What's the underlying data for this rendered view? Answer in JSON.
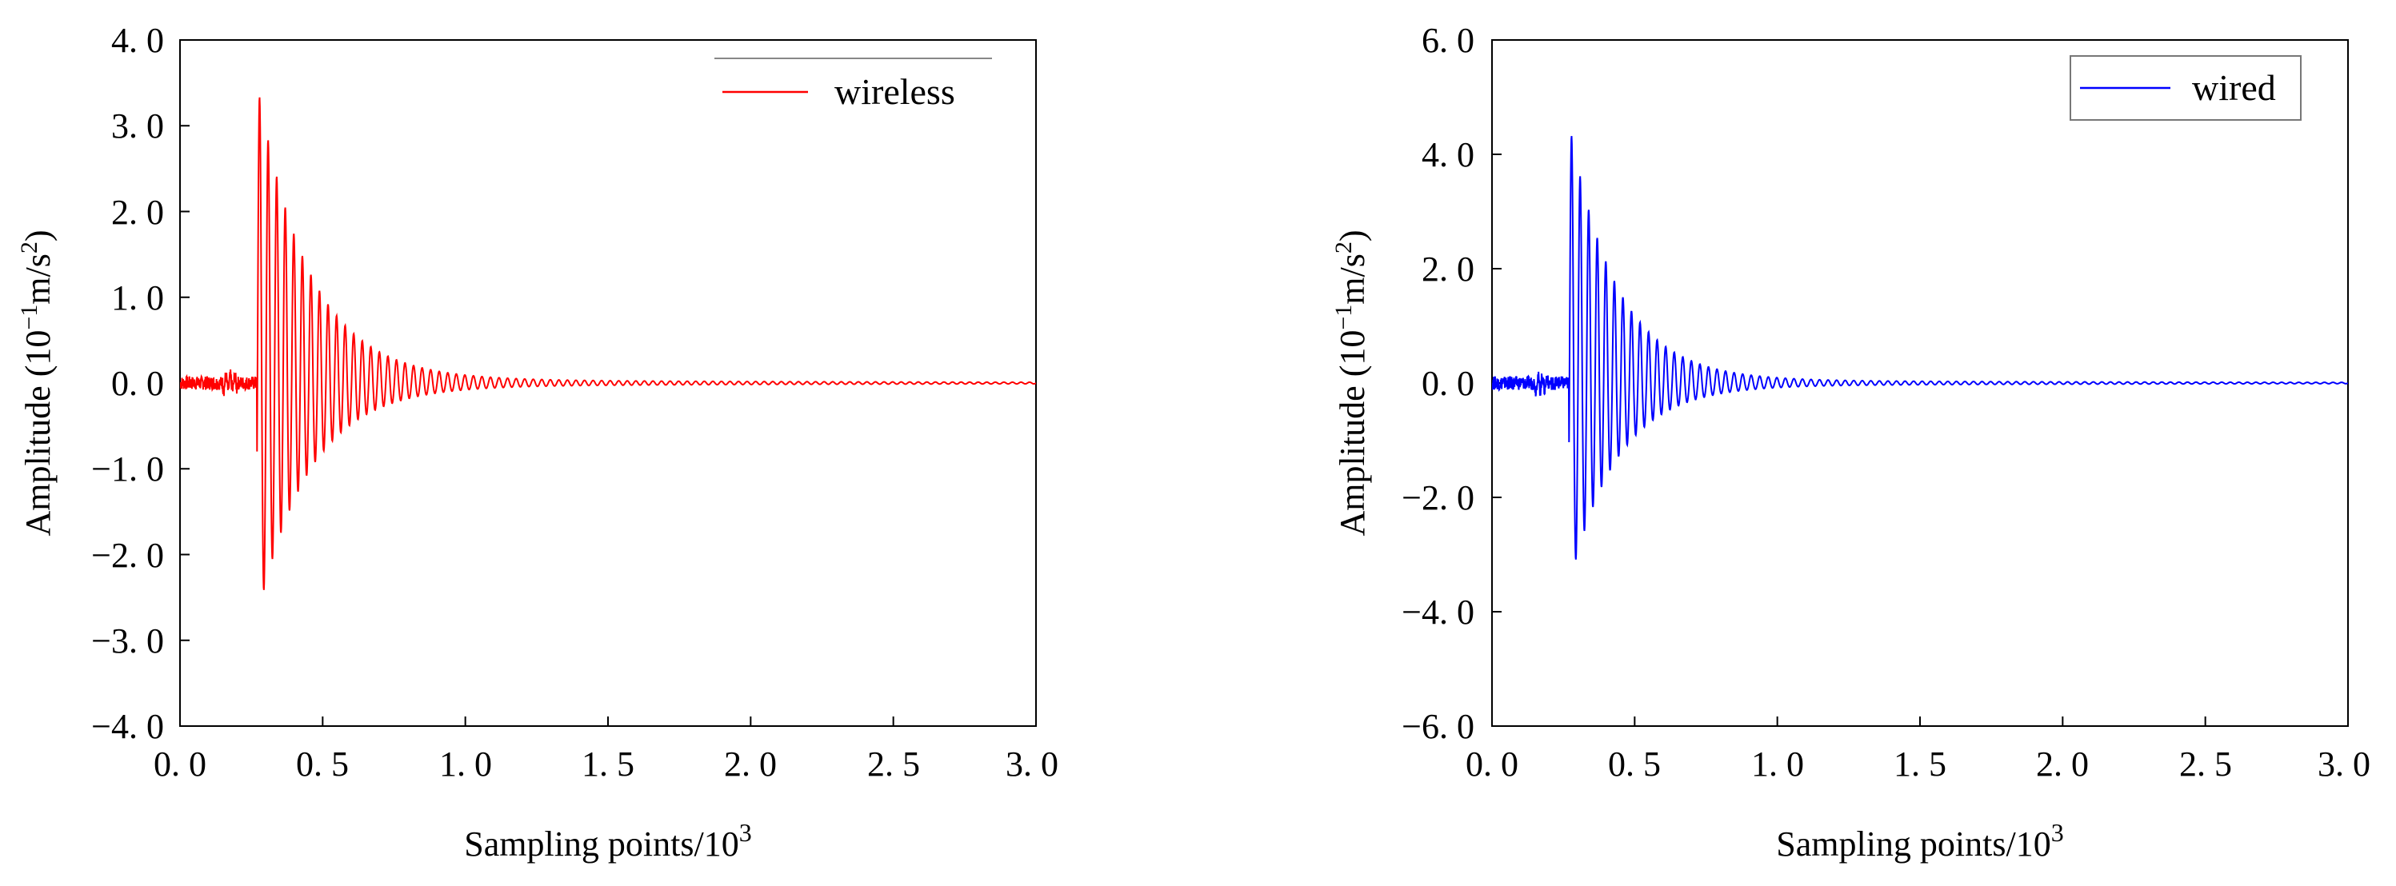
{
  "chart_data": [
    {
      "type": "line",
      "xlabel": "Sampling points/10",
      "xlabel_sup": "3",
      "ylabel": "Amplitude (10",
      "ylabel_sup1": "−1",
      "ylabel_mid": "m/s",
      "ylabel_sup2": "2",
      "ylabel_end": ")",
      "xlim": [
        0,
        3
      ],
      "ylim": [
        -4,
        4
      ],
      "x_tick_labels": [
        "0. 0",
        "0. 5",
        "1. 0",
        "1. 5",
        "2. 0",
        "2. 5",
        "3. 0"
      ],
      "y_tick_labels": [
        "4. 0",
        "3. 0",
        "2. 0",
        "1. 0",
        "0. 0",
        "−1. 0",
        "−2. 0",
        "−3. 0",
        "−4. 0"
      ],
      "legend_position": "top-right",
      "series": [
        {
          "name": "wireless",
          "color": "#ff0000",
          "signal": {
            "onset": 0.27,
            "pos_peak": 3.45,
            "neg_peak": -2.7,
            "decay": 5.5,
            "period": 0.03,
            "pre_noise": 0.08,
            "tail": 0.05
          }
        }
      ]
    },
    {
      "type": "line",
      "xlabel": "Sampling points/10",
      "xlabel_sup": "3",
      "ylabel": "Amplitude (10",
      "ylabel_sup1": "−1",
      "ylabel_mid": "m/s",
      "ylabel_sup2": "2",
      "ylabel_end": ")",
      "xlim": [
        0,
        3
      ],
      "ylim": [
        -6,
        6
      ],
      "x_tick_labels": [
        "0. 0",
        "0. 5",
        "1. 0",
        "1. 5",
        "2. 0",
        "2. 5",
        "3. 0"
      ],
      "y_tick_labels": [
        "6. 0",
        "4. 0",
        "2. 0",
        "0. 0",
        "−2. 0",
        "−4. 0",
        "−6. 0"
      ],
      "legend_position": "top-right",
      "series": [
        {
          "name": "wired",
          "color": "#0000ff",
          "signal": {
            "onset": 0.27,
            "pos_peak": 4.5,
            "neg_peak": -3.5,
            "decay": 6.0,
            "period": 0.03,
            "pre_noise": 0.12,
            "tail": 0.06
          }
        }
      ]
    }
  ]
}
